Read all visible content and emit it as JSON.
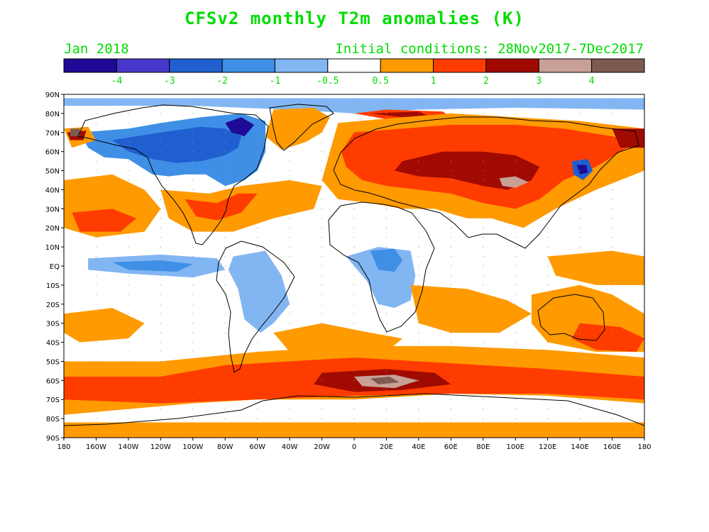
{
  "title": "CFSv2 monthly T2m anomalies (K)",
  "month": "Jan 2018",
  "initial_conditions": "Initial conditions: 28Nov2017-7Dec2017",
  "colors": {
    "text_green": "#00dd00",
    "ocean_white": "#ffffff",
    "grid_dot": "#999999"
  },
  "legend": {
    "bins": [
      {
        "color": "#1e0a96"
      },
      {
        "color": "#4637c8"
      },
      {
        "color": "#1f5fcf"
      },
      {
        "color": "#3f8fe6"
      },
      {
        "color": "#82b6f2"
      },
      {
        "color": "#ffffff"
      },
      {
        "color": "#ff9a00"
      },
      {
        "color": "#ff3c00"
      },
      {
        "color": "#a00a00"
      },
      {
        "color": "#c8a096"
      },
      {
        "color": "#7d5a50"
      }
    ],
    "tick_labels": [
      "-4",
      "-3",
      "-2",
      "-1",
      "-0.5",
      "0.5",
      "1",
      "2",
      "3",
      "4"
    ]
  },
  "lat_labels": [
    "90N",
    "80N",
    "70N",
    "60N",
    "50N",
    "40N",
    "30N",
    "20N",
    "10N",
    "EQ",
    "10S",
    "20S",
    "30S",
    "40S",
    "50S",
    "60S",
    "70S",
    "80S",
    "90S"
  ],
  "lon_labels": [
    "180",
    "160W",
    "140W",
    "120W",
    "100W",
    "80W",
    "60W",
    "40W",
    "20W",
    "0",
    "20E",
    "40E",
    "60E",
    "80E",
    "100E",
    "120E",
    "140E",
    "160E",
    "180"
  ],
  "anomaly_regions": [
    {
      "name": "arctic-ocean-cool",
      "color": "#82b6f2",
      "pts": [
        [
          -180,
          88
        ],
        [
          180,
          88
        ],
        [
          180,
          82
        ],
        [
          100,
          83
        ],
        [
          40,
          82
        ],
        [
          0,
          80
        ],
        [
          -40,
          82
        ],
        [
          -100,
          84
        ],
        [
          -180,
          84
        ]
      ]
    },
    {
      "name": "barents-warm",
      "color": "#ff3c00",
      "pts": [
        [
          0,
          80
        ],
        [
          20,
          82
        ],
        [
          55,
          81
        ],
        [
          60,
          78
        ],
        [
          45,
          76
        ],
        [
          20,
          77
        ]
      ]
    },
    {
      "name": "kara-strong-warm",
      "color": "#a00a00",
      "pts": [
        [
          10,
          80
        ],
        [
          40,
          81
        ],
        [
          45,
          79
        ],
        [
          30,
          78
        ]
      ]
    },
    {
      "name": "north-america-cool",
      "color": "#3f8fe6",
      "pts": [
        [
          -170,
          70
        ],
        [
          -140,
          72
        ],
        [
          -120,
          75
        ],
        [
          -95,
          78
        ],
        [
          -70,
          80
        ],
        [
          -55,
          76
        ],
        [
          -55,
          60
        ],
        [
          -60,
          50
        ],
        [
          -68,
          45
        ],
        [
          -80,
          42
        ],
        [
          -92,
          48
        ],
        [
          -105,
          48
        ],
        [
          -115,
          47
        ],
        [
          -125,
          48
        ],
        [
          -140,
          56
        ],
        [
          -155,
          57
        ],
        [
          -165,
          62
        ]
      ]
    },
    {
      "name": "north-america-cool-inner",
      "color": "#1f5fcf",
      "pts": [
        [
          -150,
          66
        ],
        [
          -120,
          70
        ],
        [
          -95,
          73
        ],
        [
          -80,
          72
        ],
        [
          -70,
          68
        ],
        [
          -72,
          62
        ],
        [
          -80,
          58
        ],
        [
          -95,
          55
        ],
        [
          -110,
          54
        ],
        [
          -125,
          56
        ],
        [
          -140,
          60
        ]
      ]
    },
    {
      "name": "baffin-strong-cool",
      "color": "#1e0a96",
      "pts": [
        [
          -80,
          75
        ],
        [
          -70,
          78
        ],
        [
          -62,
          74
        ],
        [
          -68,
          68
        ],
        [
          -76,
          70
        ]
      ]
    },
    {
      "name": "alaska-warm",
      "color": "#ff9a00",
      "pts": [
        [
          -180,
          72
        ],
        [
          -165,
          73
        ],
        [
          -160,
          66
        ],
        [
          -175,
          62
        ]
      ]
    },
    {
      "name": "chukchi-strong-warm",
      "color": "#a00a00",
      "pts": [
        [
          -178,
          70
        ],
        [
          -166,
          71
        ],
        [
          -168,
          66
        ],
        [
          -176,
          66
        ]
      ]
    },
    {
      "name": "greenland-warm",
      "color": "#ff9a00",
      "pts": [
        [
          -50,
          82
        ],
        [
          -25,
          83
        ],
        [
          -15,
          78
        ],
        [
          -20,
          70
        ],
        [
          -30,
          65
        ],
        [
          -45,
          61
        ],
        [
          -55,
          68
        ]
      ]
    },
    {
      "name": "eurasia-warm",
      "color": "#ff9a00",
      "pts": [
        [
          -10,
          75
        ],
        [
          30,
          78
        ],
        [
          60,
          80
        ],
        [
          100,
          78
        ],
        [
          140,
          76
        ],
        [
          180,
          72
        ],
        [
          180,
          50
        ],
        [
          150,
          40
        ],
        [
          125,
          30
        ],
        [
          105,
          20
        ],
        [
          85,
          25
        ],
        [
          70,
          25
        ],
        [
          50,
          30
        ],
        [
          30,
          30
        ],
        [
          10,
          33
        ],
        [
          -10,
          35
        ],
        [
          -20,
          45
        ],
        [
          -15,
          60
        ]
      ]
    },
    {
      "name": "eurasia-moderate-warm",
      "color": "#ff3c00",
      "pts": [
        [
          0,
          70
        ],
        [
          30,
          72
        ],
        [
          60,
          74
        ],
        [
          100,
          74
        ],
        [
          130,
          72
        ],
        [
          160,
          68
        ],
        [
          175,
          65
        ],
        [
          150,
          52
        ],
        [
          130,
          45
        ],
        [
          115,
          35
        ],
        [
          100,
          30
        ],
        [
          80,
          33
        ],
        [
          60,
          38
        ],
        [
          40,
          40
        ],
        [
          20,
          42
        ],
        [
          5,
          45
        ],
        [
          -5,
          52
        ],
        [
          -8,
          60
        ]
      ]
    },
    {
      "name": "eurasia-strong-warm",
      "color": "#a00a00",
      "pts": [
        [
          30,
          55
        ],
        [
          55,
          60
        ],
        [
          80,
          60
        ],
        [
          100,
          58
        ],
        [
          115,
          52
        ],
        [
          110,
          45
        ],
        [
          95,
          40
        ],
        [
          80,
          42
        ],
        [
          60,
          46
        ],
        [
          40,
          47
        ],
        [
          25,
          50
        ]
      ]
    },
    {
      "name": "mongolia-very-strong",
      "color": "#c8a096",
      "pts": [
        [
          90,
          46
        ],
        [
          100,
          47
        ],
        [
          108,
          44
        ],
        [
          100,
          41
        ],
        [
          92,
          42
        ]
      ]
    },
    {
      "name": "japan-cool",
      "color": "#1f5fcf",
      "pts": [
        [
          135,
          55
        ],
        [
          145,
          56
        ],
        [
          148,
          50
        ],
        [
          142,
          45
        ],
        [
          136,
          48
        ]
      ]
    },
    {
      "name": "japan-strong-cool",
      "color": "#1e0a96",
      "pts": [
        [
          138,
          53
        ],
        [
          144,
          53
        ],
        [
          145,
          49
        ],
        [
          140,
          48
        ]
      ]
    },
    {
      "name": "north-pacific-warm",
      "color": "#ff9a00",
      "pts": [
        [
          -180,
          45
        ],
        [
          -150,
          48
        ],
        [
          -130,
          40
        ],
        [
          -120,
          30
        ],
        [
          -130,
          18
        ],
        [
          -160,
          15
        ],
        [
          -180,
          20
        ]
      ]
    },
    {
      "name": "north-pacific-moderate",
      "color": "#ff3c00",
      "pts": [
        [
          -175,
          28
        ],
        [
          -150,
          30
        ],
        [
          -135,
          25
        ],
        [
          -145,
          18
        ],
        [
          -170,
          18
        ]
      ]
    },
    {
      "name": "us-southeast-warm",
      "color": "#ff9a00",
      "pts": [
        [
          -120,
          40
        ],
        [
          -90,
          38
        ],
        [
          -70,
          42
        ],
        [
          -40,
          45
        ],
        [
          -20,
          42
        ],
        [
          -25,
          30
        ],
        [
          -50,
          25
        ],
        [
          -75,
          18
        ],
        [
          -100,
          18
        ],
        [
          -115,
          25
        ]
      ]
    },
    {
      "name": "us-southeast-moderate",
      "color": "#ff3c00",
      "pts": [
        [
          -105,
          35
        ],
        [
          -85,
          33
        ],
        [
          -72,
          38
        ],
        [
          -60,
          38
        ],
        [
          -70,
          28
        ],
        [
          -85,
          24
        ],
        [
          -98,
          26
        ]
      ]
    },
    {
      "name": "equatorial-pacific-cool",
      "color": "#82b6f2",
      "pts": [
        [
          -165,
          4
        ],
        [
          -120,
          6
        ],
        [
          -85,
          4
        ],
        [
          -80,
          -2
        ],
        [
          -100,
          -6
        ],
        [
          -140,
          -4
        ],
        [
          -165,
          -2
        ]
      ]
    },
    {
      "name": "equatorial-pacific-moderate-cool",
      "color": "#3f8fe6",
      "pts": [
        [
          -150,
          2
        ],
        [
          -120,
          3
        ],
        [
          -100,
          1
        ],
        [
          -110,
          -3
        ],
        [
          -140,
          -2
        ]
      ]
    },
    {
      "name": "south-america-cool",
      "color": "#82b6f2",
      "pts": [
        [
          -75,
          5
        ],
        [
          -55,
          8
        ],
        [
          -45,
          -5
        ],
        [
          -40,
          -20
        ],
        [
          -50,
          -30
        ],
        [
          -58,
          -35
        ],
        [
          -68,
          -28
        ],
        [
          -72,
          -12
        ],
        [
          -78,
          -2
        ]
      ]
    },
    {
      "name": "africa-cool",
      "color": "#82b6f2",
      "pts": [
        [
          -5,
          5
        ],
        [
          15,
          10
        ],
        [
          35,
          8
        ],
        [
          38,
          -5
        ],
        [
          35,
          -18
        ],
        [
          25,
          -22
        ],
        [
          15,
          -20
        ],
        [
          8,
          -8
        ],
        [
          0,
          0
        ]
      ]
    },
    {
      "name": "africa-moderate-cool",
      "color": "#3f8fe6",
      "pts": [
        [
          10,
          8
        ],
        [
          25,
          9
        ],
        [
          30,
          3
        ],
        [
          25,
          -3
        ],
        [
          15,
          -2
        ]
      ]
    },
    {
      "name": "south-indian-warm",
      "color": "#ff9a00",
      "pts": [
        [
          35,
          -10
        ],
        [
          70,
          -12
        ],
        [
          95,
          -18
        ],
        [
          110,
          -25
        ],
        [
          90,
          -35
        ],
        [
          60,
          -35
        ],
        [
          40,
          -30
        ]
      ]
    },
    {
      "name": "australia-warm",
      "color": "#ff9a00",
      "pts": [
        [
          110,
          -15
        ],
        [
          140,
          -10
        ],
        [
          160,
          -15
        ],
        [
          180,
          -25
        ],
        [
          180,
          -45
        ],
        [
          150,
          -45
        ],
        [
          120,
          -40
        ],
        [
          110,
          -30
        ]
      ]
    },
    {
      "name": "australia-moderate-warm",
      "color": "#ff3c00",
      "pts": [
        [
          140,
          -30
        ],
        [
          165,
          -32
        ],
        [
          180,
          -38
        ],
        [
          175,
          -45
        ],
        [
          150,
          -44
        ],
        [
          135,
          -38
        ]
      ]
    },
    {
      "name": "west-pacific-warm",
      "color": "#ff9a00",
      "pts": [
        [
          120,
          5
        ],
        [
          160,
          8
        ],
        [
          180,
          5
        ],
        [
          180,
          -10
        ],
        [
          150,
          -10
        ],
        [
          125,
          -5
        ]
      ]
    },
    {
      "name": "south-atlantic-warm",
      "color": "#ff9a00",
      "pts": [
        [
          -50,
          -35
        ],
        [
          -20,
          -30
        ],
        [
          10,
          -35
        ],
        [
          30,
          -38
        ],
        [
          20,
          -45
        ],
        [
          -10,
          -45
        ],
        [
          -40,
          -45
        ]
      ]
    },
    {
      "name": "southeast-pacific-warm",
      "color": "#ff9a00",
      "pts": [
        [
          -180,
          -25
        ],
        [
          -150,
          -22
        ],
        [
          -130,
          -30
        ],
        [
          -140,
          -38
        ],
        [
          -170,
          -40
        ],
        [
          -180,
          -35
        ]
      ]
    },
    {
      "name": "southern-ocean-warm",
      "color": "#ff9a00",
      "pts": [
        [
          -180,
          -50
        ],
        [
          -120,
          -50
        ],
        [
          -60,
          -45
        ],
        [
          0,
          -42
        ],
        [
          60,
          -42
        ],
        [
          120,
          -44
        ],
        [
          180,
          -48
        ],
        [
          180,
          -90
        ],
        [
          -180,
          -90
        ]
      ]
    },
    {
      "name": "southern-ocean-moderate",
      "color": "#ff3c00",
      "pts": [
        [
          -180,
          -58
        ],
        [
          -120,
          -58
        ],
        [
          -80,
          -52
        ],
        [
          -40,
          -50
        ],
        [
          0,
          -48
        ],
        [
          40,
          -50
        ],
        [
          80,
          -52
        ],
        [
          120,
          -54
        ],
        [
          180,
          -58
        ],
        [
          180,
          -70
        ],
        [
          120,
          -67
        ],
        [
          60,
          -67
        ],
        [
          0,
          -68
        ],
        [
          -60,
          -70
        ],
        [
          -120,
          -72
        ],
        [
          -180,
          -70
        ]
      ]
    },
    {
      "name": "southern-ocean-strong",
      "color": "#a00a00",
      "pts": [
        [
          -20,
          -56
        ],
        [
          20,
          -54
        ],
        [
          50,
          -56
        ],
        [
          60,
          -62
        ],
        [
          30,
          -65
        ],
        [
          0,
          -66
        ],
        [
          -25,
          -62
        ]
      ]
    },
    {
      "name": "southern-ocean-very-strong",
      "color": "#c8a096",
      "pts": [
        [
          0,
          -58
        ],
        [
          25,
          -57
        ],
        [
          40,
          -60
        ],
        [
          25,
          -64
        ],
        [
          5,
          -63
        ]
      ]
    },
    {
      "name": "southern-ocean-extreme",
      "color": "#7d5a50",
      "pts": [
        [
          10,
          -59
        ],
        [
          22,
          -58
        ],
        [
          28,
          -61
        ],
        [
          15,
          -62
        ]
      ]
    },
    {
      "name": "antarctica-mix",
      "color": "#ffffff",
      "pts": [
        [
          -180,
          -78
        ],
        [
          -100,
          -72
        ],
        [
          -60,
          -70
        ],
        [
          0,
          -70
        ],
        [
          60,
          -67
        ],
        [
          120,
          -68
        ],
        [
          180,
          -72
        ],
        [
          180,
          -82
        ],
        [
          -180,
          -82
        ]
      ]
    },
    {
      "name": "antarctica-warm-edge",
      "color": "#ff9a00",
      "pts": [
        [
          -180,
          -84
        ],
        [
          180,
          -84
        ],
        [
          180,
          -90
        ],
        [
          -180,
          -90
        ]
      ]
    },
    {
      "name": "alaska-strong",
      "color": "#7d5a50",
      "pts": [
        [
          -176,
          72
        ],
        [
          -170,
          72
        ],
        [
          -170,
          68
        ],
        [
          -176,
          68
        ]
      ]
    },
    {
      "name": "east-siberia-strong",
      "color": "#a00a00",
      "pts": [
        [
          160,
          72
        ],
        [
          180,
          72
        ],
        [
          180,
          62
        ],
        [
          165,
          62
        ]
      ]
    }
  ]
}
